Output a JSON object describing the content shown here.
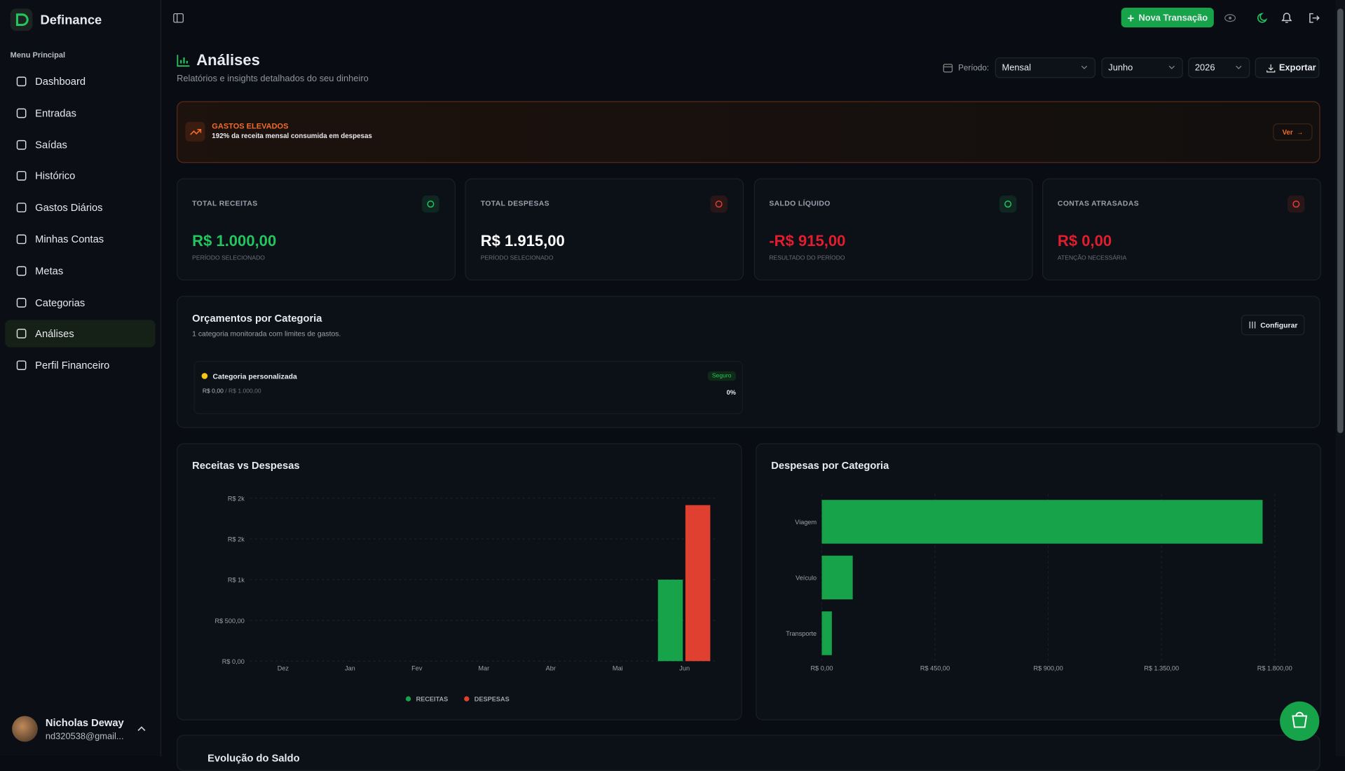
{
  "sidebar": {
    "brand": "Definance",
    "menu_title": "Menu Principal",
    "items": [
      "Dashboard",
      "Entradas",
      "Saídas",
      "Histórico",
      "Gastos Diários",
      "Minhas Contas",
      "Metas",
      "Categorias",
      "Análises",
      "Perfil Financeiro"
    ],
    "active": "Análises",
    "user": {
      "name": "Nicholas Deway",
      "email": "nd320538@gmail..."
    }
  },
  "topbar": {
    "new_button": "Nova Transação"
  },
  "header": {
    "title": "Análises",
    "subtitle": "Relatórios e insights detalhados do seu dinheiro",
    "period_label": "Período:",
    "period": "Mensal",
    "month": "Junho",
    "year": "2026",
    "export": "Exportar"
  },
  "alert": {
    "title": "GASTOS ELEVADOS",
    "text": "192% da receita mensal consumida em despesas",
    "action": "Ver"
  },
  "stats": [
    {
      "label": "TOTAL RECEITAS",
      "value": "R$ 1.000,00",
      "sub": "PERÍODO SELECIONADO"
    },
    {
      "label": "TOTAL DESPESAS",
      "value": "R$ 1.915,00",
      "sub": "PERÍODO SELECIONADO"
    },
    {
      "label": "SALDO LÍQUIDO",
      "value": "-R$ 915,00",
      "sub": "RESULTADO DO PERÍODO"
    },
    {
      "label": "CONTAS ATRASADAS",
      "value": "R$ 0,00",
      "sub": "ATENÇÃO NECESSÁRIA"
    }
  ],
  "budgets": {
    "title": "Orçamentos por Categoria",
    "subtitle": "1 categoria monitorada com limites de gastos.",
    "configure": "Configurar",
    "items": [
      {
        "name": "Categoria personalizada",
        "status": "Seguro",
        "spent": "R$ 0,00",
        "limit": "/ R$ 1.000,00",
        "percent": "0%"
      }
    ]
  },
  "next_section": {
    "title": "Evolução do Saldo"
  },
  "chart_data": [
    {
      "type": "bar",
      "title": "Receitas vs Despesas",
      "categories": [
        "Dez",
        "Jan",
        "Fev",
        "Mar",
        "Abr",
        "Mai",
        "Jun"
      ],
      "series": [
        {
          "name": "RECEITAS",
          "color": "#16a34a",
          "values": [
            0,
            0,
            0,
            0,
            0,
            0,
            1000
          ]
        },
        {
          "name": "DESPESAS",
          "color": "#e0402f",
          "values": [
            0,
            0,
            0,
            0,
            0,
            0,
            1915
          ]
        }
      ],
      "ylim": [
        0,
        2000
      ],
      "yticks": [
        {
          "value": 0,
          "label": "R$ 0,00"
        },
        {
          "value": 500,
          "label": "R$ 500,00"
        },
        {
          "value": 1000,
          "label": "R$ 1k"
        },
        {
          "value": 1500,
          "label": "R$ 2k"
        },
        {
          "value": 2000,
          "label": "R$ 2k"
        }
      ],
      "grid": true
    },
    {
      "type": "barh",
      "title": "Despesas por Categoria",
      "categories": [
        "Viagem",
        "Veículo",
        "Transporte"
      ],
      "values": [
        1752,
        123,
        40
      ],
      "color": "#16a34a",
      "xlim": [
        0,
        1800
      ],
      "xticks": [
        {
          "value": 0,
          "label": "R$ 0,00"
        },
        {
          "value": 450,
          "label": "R$ 450,00"
        },
        {
          "value": 900,
          "label": "R$ 900,00"
        },
        {
          "value": 1350,
          "label": "R$ 1.350,00"
        },
        {
          "value": 1800,
          "label": "R$ 1.800,00"
        }
      ],
      "grid": true
    }
  ]
}
